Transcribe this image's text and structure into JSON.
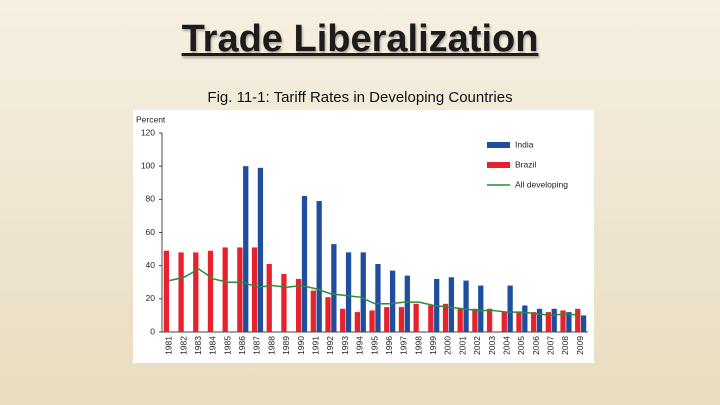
{
  "title": "Trade Liberalization",
  "chart_data": {
    "type": "bar",
    "title": "Fig. 11-1: Tariff Rates in Developing Countries",
    "y_label": "Percent",
    "categories": [
      "1981",
      "1982",
      "1983",
      "1984",
      "1985",
      "1986",
      "1987",
      "1988",
      "1989",
      "1990",
      "1991",
      "1992",
      "1993",
      "1994",
      "1995",
      "1996",
      "1997",
      "1998",
      "1999",
      "2000",
      "2001",
      "2002",
      "2003",
      "2004",
      "2005",
      "2006",
      "2007",
      "2008",
      "2009"
    ],
    "series": [
      {
        "name": "India",
        "color": "#1f4e9e",
        "values": [
          null,
          null,
          null,
          null,
          null,
          100,
          99,
          null,
          null,
          82,
          79,
          53,
          48,
          48,
          41,
          37,
          34,
          null,
          32,
          33,
          31,
          28,
          null,
          28,
          16,
          14,
          14,
          12,
          10
        ]
      },
      {
        "name": "Brazil",
        "color": "#e8222c",
        "values": [
          49,
          48,
          48,
          49,
          51,
          51,
          51,
          41,
          35,
          32,
          25,
          21,
          14,
          12,
          13,
          15,
          15,
          17,
          16,
          17,
          14,
          14,
          14,
          12,
          12,
          12,
          12,
          13,
          14
        ]
      },
      {
        "name": "All developing",
        "type": "line",
        "color": "#2e8b3a",
        "values": [
          31,
          33,
          38,
          32,
          30,
          30,
          27,
          28,
          27,
          28,
          26,
          23,
          22,
          21,
          17,
          17,
          18,
          18,
          16,
          15,
          14,
          13,
          13,
          12,
          12,
          11,
          10,
          11,
          10
        ]
      }
    ],
    "ylim": [
      0,
      120
    ],
    "yticks": [
      0,
      20,
      40,
      60,
      80,
      100,
      120
    ]
  }
}
